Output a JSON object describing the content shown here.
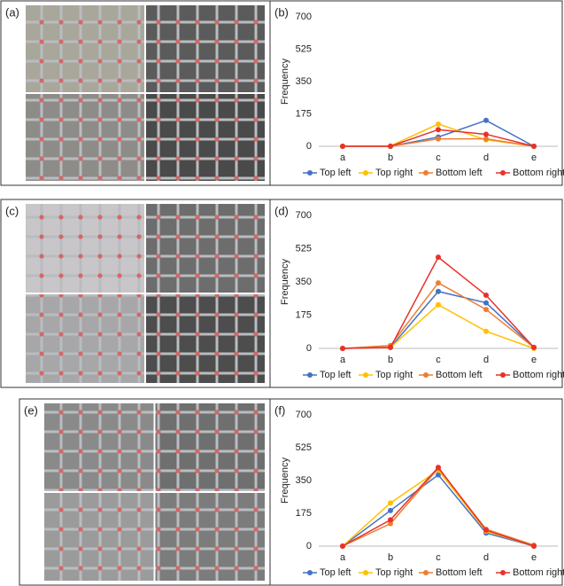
{
  "photos": [
    {
      "label": "(a)"
    },
    {
      "label": "(c)"
    },
    {
      "label": "(e)"
    }
  ],
  "chart_data": [
    {
      "type": "line",
      "label": "(b)",
      "y_label": "Frequency",
      "categories": [
        "a",
        "b",
        "c",
        "d",
        "e"
      ],
      "ylim": [
        0,
        700
      ],
      "yticks": [
        0,
        175,
        350,
        525,
        700
      ],
      "series": [
        {
          "name": "Top left",
          "color": "#4472c4",
          "values": [
            0,
            0,
            50,
            140,
            0
          ]
        },
        {
          "name": "Top right",
          "color": "#ffc000",
          "values": [
            0,
            2,
            120,
            35,
            0
          ]
        },
        {
          "name": "Bottom left",
          "color": "#ed7d31",
          "values": [
            0,
            0,
            40,
            40,
            0
          ]
        },
        {
          "name": "Bottom right",
          "color": "#e8312a",
          "values": [
            0,
            0,
            90,
            65,
            0
          ]
        }
      ]
    },
    {
      "type": "line",
      "label": "(d)",
      "y_label": "Frequency",
      "categories": [
        "a",
        "b",
        "c",
        "d",
        "e"
      ],
      "ylim": [
        0,
        700
      ],
      "yticks": [
        0,
        175,
        350,
        525,
        700
      ],
      "series": [
        {
          "name": "Top left",
          "color": "#4472c4",
          "values": [
            0,
            5,
            300,
            240,
            5
          ]
        },
        {
          "name": "Top right",
          "color": "#ffc000",
          "values": [
            0,
            5,
            230,
            90,
            0
          ]
        },
        {
          "name": "Bottom left",
          "color": "#ed7d31",
          "values": [
            0,
            15,
            345,
            205,
            5
          ]
        },
        {
          "name": "Bottom right",
          "color": "#e8312a",
          "values": [
            0,
            5,
            480,
            280,
            5
          ]
        }
      ]
    },
    {
      "type": "line",
      "label": "(f)",
      "y_label": "Frequency",
      "categories": [
        "a",
        "b",
        "c",
        "d",
        "e"
      ],
      "ylim": [
        0,
        700
      ],
      "yticks": [
        0,
        175,
        350,
        525,
        700
      ],
      "series": [
        {
          "name": "Top left",
          "color": "#4472c4",
          "values": [
            0,
            190,
            380,
            70,
            0
          ]
        },
        {
          "name": "Top right",
          "color": "#ffc000",
          "values": [
            0,
            230,
            405,
            80,
            0
          ]
        },
        {
          "name": "Bottom left",
          "color": "#ed7d31",
          "values": [
            0,
            120,
            415,
            90,
            5
          ]
        },
        {
          "name": "Bottom right",
          "color": "#e8312a",
          "values": [
            0,
            140,
            420,
            85,
            0
          ]
        }
      ]
    }
  ]
}
